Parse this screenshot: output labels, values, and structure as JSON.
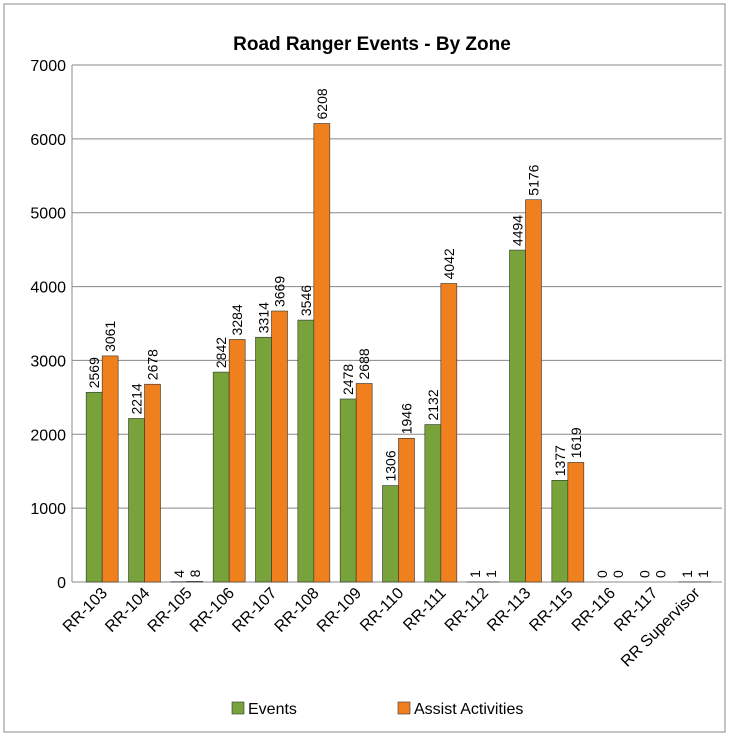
{
  "chart_data": {
    "type": "bar",
    "title": "Road Ranger Events - By Zone",
    "categories": [
      "RR-103",
      "RR-104",
      "RR-105",
      "RR-106",
      "RR-107",
      "RR-108",
      "RR-109",
      "RR-110",
      "RR-111",
      "RR-112",
      "RR-113",
      "RR-115",
      "RR-116",
      "RR-117",
      "RR Supervisor"
    ],
    "series": [
      {
        "name": "Events",
        "color": "#77a33a",
        "values": [
          2569,
          2214,
          4,
          2842,
          3314,
          3546,
          2478,
          1306,
          2132,
          1,
          4494,
          1377,
          0,
          0,
          1
        ]
      },
      {
        "name": "Assist Activities",
        "color": "#f07f1e",
        "values": [
          3061,
          2678,
          8,
          3284,
          3669,
          6208,
          2688,
          1946,
          4042,
          1,
          5176,
          1619,
          0,
          0,
          1
        ]
      }
    ],
    "ylim": [
      0,
      7000
    ],
    "yticks": [
      0,
      1000,
      2000,
      3000,
      4000,
      5000,
      6000,
      7000
    ],
    "grid": true,
    "legend": "bottom"
  }
}
